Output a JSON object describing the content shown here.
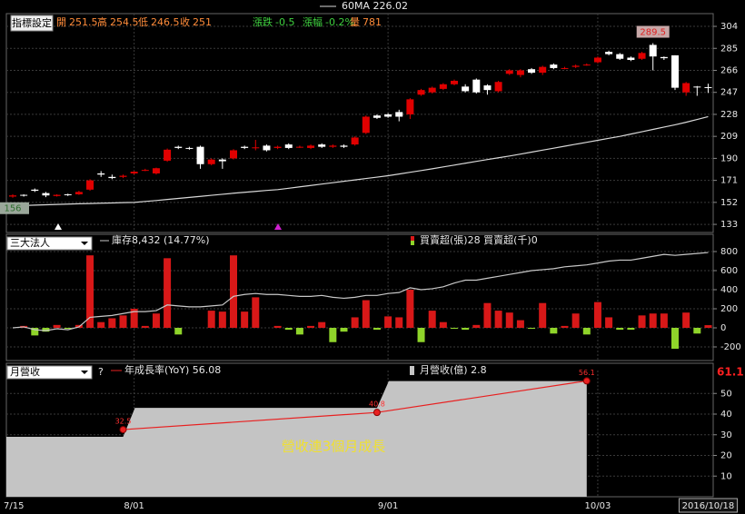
{
  "chart_data": [
    {
      "type": "candlestick",
      "button": "指標設定",
      "quote": [
        {
          "label": "開",
          "value": 251.5,
          "color": "#ff8c3a"
        },
        {
          "label": "高",
          "value": 254.5,
          "color": "#ff8c3a"
        },
        {
          "label": "低",
          "value": 246.5,
          "color": "#ff8c3a"
        },
        {
          "label": "收",
          "value": 251,
          "color": "#ff8c3a"
        },
        {
          "label": "漲跌",
          "value": -0.5,
          "color": "#3fd13f"
        },
        {
          "label": "漲幅",
          "value": -0.2,
          "value_label": "-0.2%",
          "color": "#3fd13f"
        },
        {
          "label": "量",
          "value": 781,
          "color": "#ff8c3a"
        }
      ],
      "categories": [
        "7/15",
        null,
        null,
        null,
        null,
        null,
        null,
        null,
        null,
        null,
        null,
        "8/01",
        null,
        null,
        null,
        null,
        null,
        null,
        null,
        null,
        null,
        null,
        null,
        null,
        null,
        null,
        null,
        null,
        null,
        null,
        null,
        null,
        null,
        null,
        "9/01",
        null,
        null,
        null,
        null,
        null,
        null,
        null,
        null,
        null,
        null,
        null,
        null,
        null,
        null,
        null,
        null,
        null,
        null,
        "10/03",
        null,
        null,
        null,
        null,
        null,
        null,
        null,
        null,
        null,
        "2016/10/18"
      ],
      "open": [
        157,
        158.5,
        163,
        160,
        157.5,
        159,
        159,
        163,
        177,
        174,
        174,
        177,
        180,
        177,
        188,
        200,
        199,
        200,
        185,
        189,
        190,
        200,
        199.5,
        201,
        199,
        202,
        200,
        199,
        202,
        200,
        201,
        202,
        212,
        227,
        228,
        230,
        228,
        245,
        247,
        250,
        254,
        252,
        258,
        253,
        248,
        263,
        262,
        267,
        264,
        271,
        268,
        269,
        271,
        273,
        282,
        280,
        277,
        276,
        288,
        277.5,
        279,
        247,
        252,
        251.5
      ],
      "high": [
        159,
        159,
        164,
        161,
        159,
        159.5,
        162,
        172,
        179,
        176,
        176,
        179,
        181,
        182,
        198.5,
        201,
        200,
        201,
        190,
        190,
        198,
        201,
        206,
        202,
        201,
        203,
        201,
        202,
        203,
        202,
        202,
        209,
        227,
        228,
        229,
        232,
        242,
        250,
        252,
        255,
        258,
        254,
        259,
        254,
        257,
        267,
        267,
        268,
        270,
        272,
        269,
        271,
        272,
        278,
        283,
        281,
        278,
        282,
        289.5,
        278,
        279,
        256,
        252.5,
        254.5
      ],
      "low": [
        156,
        157,
        161,
        156.5,
        157,
        157.5,
        158.5,
        162,
        174,
        172,
        173,
        176,
        179,
        176,
        187,
        198,
        197.5,
        181,
        184,
        181,
        189,
        198,
        197,
        196,
        198,
        198,
        199,
        198,
        199,
        199,
        199,
        201,
        211,
        224,
        225,
        222,
        224,
        244,
        246,
        249,
        253,
        247,
        246,
        245,
        247,
        262,
        260,
        263,
        262,
        267,
        267,
        268,
        270,
        272,
        279,
        275,
        274,
        275,
        266,
        275,
        249,
        244,
        244,
        246.5
      ],
      "close": [
        158,
        158,
        162,
        158,
        158.5,
        158.5,
        161,
        171,
        176,
        173,
        175,
        178.5,
        180,
        181.5,
        197.5,
        199,
        198.5,
        185,
        189,
        187.5,
        197,
        199,
        199.5,
        197,
        200,
        199,
        200,
        201,
        200,
        201,
        200,
        208,
        226,
        225,
        226,
        226,
        241,
        249,
        251,
        254,
        257,
        248,
        247,
        249,
        256,
        266,
        266,
        264,
        269,
        268,
        268,
        270,
        271,
        277,
        280,
        276,
        275,
        281,
        278,
        276.5,
        251,
        255,
        251.5,
        251
      ],
      "up_color": "#e00000",
      "down_color": "#ffffff",
      "series": [
        {
          "name": "60MA",
          "color": "#d8d8d8",
          "values": [
            149,
            149.3,
            149.6,
            149.9,
            150.2,
            150.5,
            150.8,
            151,
            151.3,
            151.5,
            151.8,
            152,
            152.8,
            153.6,
            154.5,
            155.4,
            156.3,
            157.2,
            158.1,
            159,
            159.9,
            160.7,
            161.5,
            162.3,
            163,
            164.2,
            165.4,
            166.6,
            167.8,
            169,
            170.2,
            171.4,
            172.6,
            173.8,
            175,
            176.5,
            178,
            179.5,
            181,
            182.6,
            184.2,
            185.8,
            187.4,
            189,
            190.5,
            192,
            193.7,
            195.4,
            197.1,
            198.8,
            200.5,
            202.2,
            203.9,
            205.6,
            207.3,
            209,
            211,
            213,
            215,
            217,
            219,
            221.2,
            223.6,
            226.02
          ]
        }
      ],
      "ylim": [
        126,
        315
      ],
      "yticks": [
        133,
        152,
        171,
        190,
        209,
        228,
        247,
        266,
        285,
        304
      ],
      "grid": true
    },
    {
      "type": "bar",
      "selector": "三大法人",
      "series": [
        {
          "name": "庫存",
          "type": "line",
          "color": "#c8c8c8",
          "legend_value": "8,432 (14.77%)",
          "values": [
            0,
            10,
            -20,
            -30,
            -10,
            -20,
            10,
            110,
            120,
            130,
            150,
            170,
            170,
            180,
            240,
            230,
            220,
            220,
            230,
            240,
            330,
            350,
            360,
            350,
            350,
            340,
            330,
            330,
            340,
            320,
            310,
            320,
            340,
            340,
            360,
            370,
            420,
            400,
            410,
            430,
            470,
            500,
            500,
            520,
            540,
            560,
            580,
            600,
            610,
            620,
            640,
            650,
            660,
            680,
            700,
            710,
            710,
            730,
            750,
            770,
            760,
            770,
            780,
            790
          ]
        },
        {
          "name": "買賣超(張)",
          "type": "bar",
          "color": "#d81818",
          "negative_color": "#8fd42a",
          "values": [
            0,
            20,
            -80,
            -40,
            30,
            -10,
            30,
            760,
            60,
            100,
            130,
            200,
            20,
            150,
            730,
            -70,
            0,
            0,
            180,
            170,
            760,
            170,
            320,
            0,
            20,
            -20,
            -70,
            20,
            60,
            -150,
            -40,
            110,
            290,
            -20,
            120,
            110,
            400,
            -150,
            180,
            60,
            -10,
            -20,
            30,
            260,
            180,
            160,
            80,
            -10,
            260,
            -60,
            20,
            150,
            -70,
            270,
            110,
            -20,
            -20,
            130,
            150,
            150,
            -220,
            160,
            -60,
            28
          ]
        }
      ],
      "extra_legend": {
        "label": "買賣超(千)",
        "value": 0
      },
      "ylim": [
        -343,
        981
      ],
      "yticks": [
        -200,
        0,
        200,
        400,
        600,
        800
      ],
      "grid": true
    },
    {
      "type": "line",
      "selector": "月營收",
      "help": "?",
      "annotation": "營收連3個月成長",
      "series": [
        {
          "name": "年成長率(YoY)",
          "type": "line",
          "color": "#e82020",
          "values": [
            32.5,
            40.8,
            56.08
          ],
          "value_labels": [
            "32.5",
            "40.8",
            "56.1"
          ]
        },
        {
          "name": "月營收(億)",
          "type": "area",
          "axis": "y2",
          "color": "#c4c4c4",
          "values": [
            1.45,
            2.15,
            2.8
          ]
        }
      ],
      "ylim": [
        0,
        61.1
      ],
      "yticks": [
        10,
        20,
        30,
        40,
        50
      ],
      "y2lim": [
        0,
        3.055
      ],
      "grid": true
    }
  ]
}
